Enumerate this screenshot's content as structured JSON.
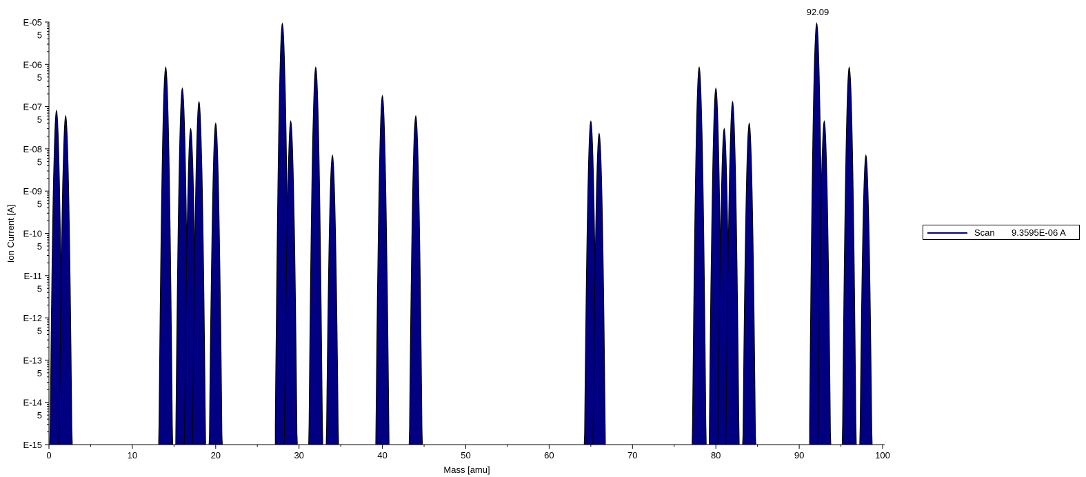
{
  "chart_data": {
    "type": "area",
    "xlabel": "Mass [amu]",
    "ylabel": "Ion Current [A]",
    "xlim": [
      0,
      100
    ],
    "ylim": [
      1e-15,
      1e-05
    ],
    "yscale": "log",
    "x_ticks": [
      "0",
      "10",
      "20",
      "30",
      "40",
      "50",
      "60",
      "70",
      "80",
      "90",
      "100"
    ],
    "y_decade_labels": [
      "E-05",
      "E-06",
      "E-07",
      "E-08",
      "E-09",
      "E-10",
      "E-11",
      "E-12",
      "E-13",
      "E-14",
      "E-15"
    ],
    "y_minor_label": "5",
    "annotation": "92.09",
    "series": [
      {
        "name": "Scan",
        "color": "#000080",
        "peaks": [
          {
            "mass": 0.9,
            "value": 8e-08
          },
          {
            "mass": 2.0,
            "value": 6e-08
          },
          {
            "mass": 14,
            "value": 8.5e-07
          },
          {
            "mass": 16,
            "value": 2.7e-07
          },
          {
            "mass": 17,
            "value": 3e-08
          },
          {
            "mass": 18,
            "value": 1.3e-07
          },
          {
            "mass": 20,
            "value": 4e-08
          },
          {
            "mass": 28,
            "value": 9.2e-06
          },
          {
            "mass": 29,
            "value": 4.5e-08
          },
          {
            "mass": 32,
            "value": 8.5e-07
          },
          {
            "mass": 34,
            "value": 7e-09
          },
          {
            "mass": 40,
            "value": 1.8e-07
          },
          {
            "mass": 44,
            "value": 6e-08
          },
          {
            "mass": 65,
            "value": 4.5e-08
          },
          {
            "mass": 66,
            "value": 2.3e-08
          },
          {
            "mass": 78,
            "value": 8.5e-07
          },
          {
            "mass": 80,
            "value": 2.7e-07
          },
          {
            "mass": 81,
            "value": 3e-08
          },
          {
            "mass": 82,
            "value": 1.3e-07
          },
          {
            "mass": 84,
            "value": 4e-08
          },
          {
            "mass": 92.09,
            "value": 9.3595e-06
          },
          {
            "mass": 93,
            "value": 4.5e-08
          },
          {
            "mass": 96,
            "value": 8.5e-07
          },
          {
            "mass": 98,
            "value": 7e-09
          }
        ]
      }
    ],
    "legend": {
      "placement": "right",
      "entries": [
        {
          "name": "Scan",
          "value": "9.3595E-06 A"
        }
      ]
    }
  }
}
